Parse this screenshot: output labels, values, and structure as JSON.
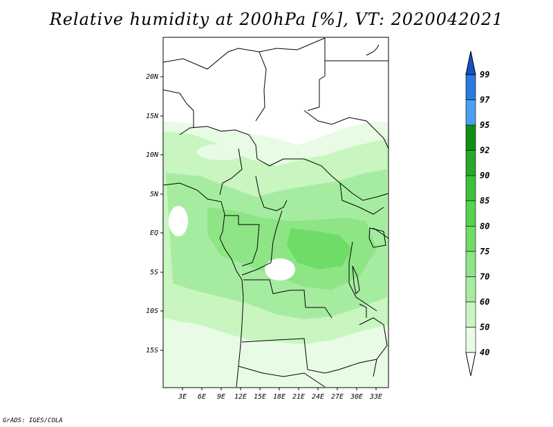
{
  "title": "Relative humidity at 200hPa [%], VT: 2020042021",
  "credit": "GrADS: IGES/COLA",
  "map": {
    "lon_range": [
      0,
      36
    ],
    "lat_range": [
      -20,
      25
    ],
    "x_ticks": [
      "3E",
      "6E",
      "9E",
      "12E",
      "15E",
      "18E",
      "21E",
      "24E",
      "27E",
      "30E",
      "33E"
    ],
    "y_ticks": [
      "20N",
      "15N",
      "10N",
      "5N",
      "EQ",
      "5S",
      "10S",
      "15S"
    ]
  },
  "colorbar": {
    "levels": [
      "40",
      "50",
      "60",
      "70",
      "75",
      "80",
      "85",
      "90",
      "92",
      "95",
      "97",
      "99"
    ],
    "colors": [
      "#ffffff",
      "#e8fbe5",
      "#c8f5c0",
      "#a6eca0",
      "#8ee586",
      "#6fdc68",
      "#55d24f",
      "#3dc03a",
      "#28a828",
      "#128f12",
      "#4aa0ee",
      "#2a7ae0",
      "#1550c8"
    ]
  }
}
